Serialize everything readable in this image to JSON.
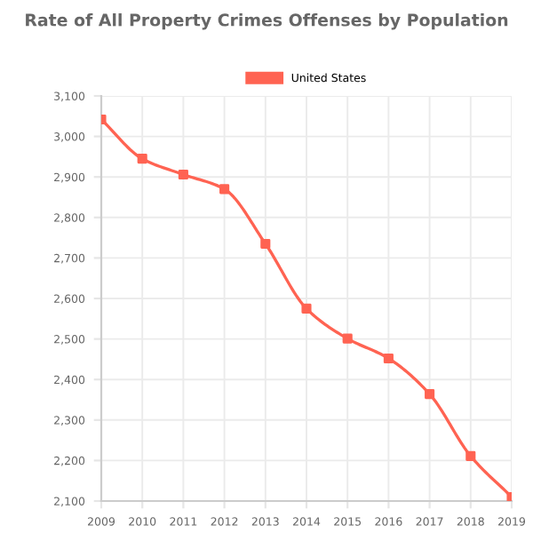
{
  "chart_data": {
    "type": "line",
    "title": "Rate of All Property Crimes Offenses by Population",
    "x": [
      2009,
      2010,
      2011,
      2012,
      2013,
      2014,
      2015,
      2016,
      2017,
      2018,
      2019
    ],
    "series": [
      {
        "name": "United States",
        "color": "#ff6352",
        "values": [
          3042,
          2945,
          2906,
          2870,
          2735,
          2575,
          2501,
          2452,
          2364,
          2211,
          2110
        ]
      }
    ],
    "xlim": [
      2009,
      2019
    ],
    "xticks": [
      2009,
      2010,
      2011,
      2012,
      2013,
      2014,
      2015,
      2016,
      2017,
      2018,
      2019
    ],
    "ylim": [
      2100,
      3100
    ],
    "yticks": [
      {
        "value": 2100,
        "label": "2,100"
      },
      {
        "value": 2200,
        "label": "2,200"
      },
      {
        "value": 2300,
        "label": "2,300"
      },
      {
        "value": 2400,
        "label": "2,400"
      },
      {
        "value": 2500,
        "label": "2,500"
      },
      {
        "value": 2600,
        "label": "2,600"
      },
      {
        "value": 2700,
        "label": "2,700"
      },
      {
        "value": 2800,
        "label": "2,800"
      },
      {
        "value": 2900,
        "label": "2,900"
      },
      {
        "value": 3000,
        "label": "3,000"
      },
      {
        "value": 3100,
        "label": "3,100"
      }
    ],
    "grid": true,
    "legend": "top",
    "marker": "square",
    "line_style": "solid"
  }
}
